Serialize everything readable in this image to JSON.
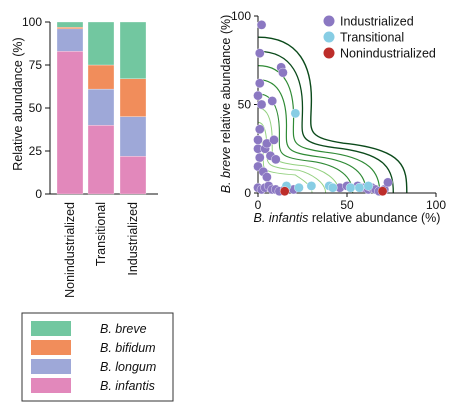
{
  "colors": {
    "b_breve": "#72c7a0",
    "b_bifidum": "#f18d5b",
    "b_longum": "#9ea8d8",
    "b_infantis": "#e288bb",
    "industrialized": "#8b78c2",
    "transitional": "#87cde4",
    "nonindustrialized": "#bd2d2a",
    "contour_dark": "#0b4a1b",
    "contour_mid": "#2f8a35",
    "contour_light": "#93d07f"
  },
  "legend_bottom": {
    "items": [
      {
        "label": "B. breve",
        "color_key": "b_breve"
      },
      {
        "label": "B. bifidum",
        "color_key": "b_bifidum"
      },
      {
        "label": "B. longum",
        "color_key": "b_longum"
      },
      {
        "label": "B. infantis",
        "color_key": "b_infantis"
      }
    ]
  },
  "chart_data": [
    {
      "type": "bar",
      "stacked": true,
      "ylabel": "Relative abundance (%)",
      "ylim": [
        0,
        100
      ],
      "yticks": [
        "0",
        "25",
        "50",
        "75",
        "100"
      ],
      "categories": [
        "Nonindustrialized",
        "Transitional",
        "Industrialized"
      ],
      "series": [
        {
          "name": "B. infantis",
          "color_key": "b_infantis",
          "values": [
            83,
            40,
            22
          ]
        },
        {
          "name": "B. longum",
          "color_key": "b_longum",
          "values": [
            13,
            21,
            23
          ]
        },
        {
          "name": "B. bifidum",
          "color_key": "b_bifidum",
          "values": [
            1,
            14,
            22
          ]
        },
        {
          "name": "B. breve",
          "color_key": "b_breve",
          "values": [
            3,
            25,
            33
          ]
        }
      ]
    },
    {
      "type": "scatter",
      "xlabel_italic": "B. infantis",
      "xlabel_rest": " relative abundance (%)",
      "ylabel_italic": "B. breve",
      "ylabel_rest": " relative abundance (%)",
      "xlim": [
        0,
        100
      ],
      "ylim": [
        0,
        100
      ],
      "xticks": [
        "0",
        "50",
        "100"
      ],
      "yticks": [
        "0",
        "50",
        "100"
      ],
      "legend_position": "top-right",
      "series": [
        {
          "name": "Industrialized",
          "color_key": "industrialized",
          "points": [
            [
              2,
              95
            ],
            [
              1,
              79
            ],
            [
              1,
              62
            ],
            [
              0,
              55
            ],
            [
              2,
              50
            ],
            [
              1,
              36
            ],
            [
              0,
              30
            ],
            [
              0,
              25
            ],
            [
              4,
              25
            ],
            [
              1,
              20
            ],
            [
              0,
              15
            ],
            [
              3,
              12
            ],
            [
              5,
              9
            ],
            [
              0,
              3
            ],
            [
              2,
              2
            ],
            [
              4,
              3
            ],
            [
              6,
              4
            ],
            [
              8,
              2
            ],
            [
              10,
              2
            ],
            [
              12,
              1
            ],
            [
              13,
              71
            ],
            [
              14,
              68
            ],
            [
              8,
              52
            ],
            [
              5,
              28
            ],
            [
              9,
              30
            ],
            [
              7,
              21
            ],
            [
              10,
              19
            ],
            [
              15,
              2
            ],
            [
              20,
              2
            ],
            [
              46,
              3
            ],
            [
              50,
              4
            ],
            [
              56,
              4
            ],
            [
              58,
              3
            ],
            [
              60,
              3
            ],
            [
              62,
              2
            ],
            [
              64,
              3
            ],
            [
              66,
              2
            ],
            [
              68,
              1
            ],
            [
              71,
              2
            ],
            [
              73,
              6
            ]
          ]
        },
        {
          "name": "Transitional",
          "color_key": "transitional",
          "points": [
            [
              21,
              45
            ],
            [
              16,
              4
            ],
            [
              23,
              3
            ],
            [
              30,
              4
            ],
            [
              40,
              4
            ],
            [
              52,
              3
            ],
            [
              57,
              3
            ],
            [
              62,
              4
            ],
            [
              42,
              3
            ]
          ]
        },
        {
          "name": "Nonindustrialized",
          "color_key": "nonindustrialized",
          "points": [
            [
              15,
              1
            ],
            [
              70,
              1
            ]
          ]
        }
      ]
    }
  ]
}
